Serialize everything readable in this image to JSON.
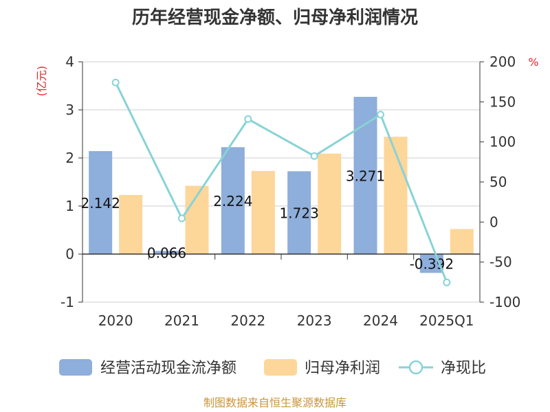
{
  "chart_data": {
    "type": "bar",
    "title": "历年经营现金净额、归母净利润情况",
    "categories": [
      "2020",
      "2021",
      "2022",
      "2023",
      "2024",
      "2025Q1"
    ],
    "series": [
      {
        "name": "经营活动现金流净额",
        "type": "bar",
        "axis": "left",
        "color": "#8eaedb",
        "values": [
          2.142,
          0.066,
          2.224,
          1.723,
          3.271,
          -0.392
        ],
        "labels": [
          "2.142",
          "0.066",
          "2.224",
          "1.723",
          "3.271",
          "-0.392"
        ]
      },
      {
        "name": "归母净利润",
        "type": "bar",
        "axis": "left",
        "color": "#fdd699",
        "values": [
          1.23,
          1.42,
          1.73,
          2.09,
          2.44,
          0.52
        ]
      },
      {
        "name": "净现比",
        "type": "line",
        "axis": "right",
        "color": "#88d3d6",
        "values": [
          174.2,
          4.6,
          128.5,
          82.4,
          134.1,
          -75.4
        ]
      }
    ],
    "y_left": {
      "unit": "(亿元)",
      "min": -1,
      "max": 4,
      "ticks": [
        -1,
        0,
        1,
        2,
        3,
        4
      ]
    },
    "y_right": {
      "unit": "%",
      "min": -100,
      "max": 200,
      "ticks": [
        -100,
        -50,
        0,
        50,
        100,
        150,
        200
      ]
    },
    "grid": true,
    "legend_position": "bottom"
  },
  "source": "制图数据来自恒生聚源数据库"
}
